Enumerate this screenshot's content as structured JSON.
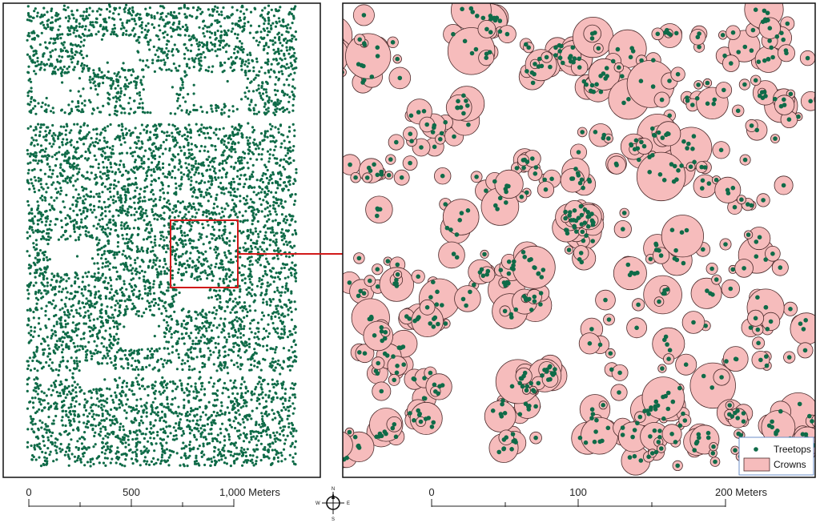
{
  "colors": {
    "treetop": "#0f6b48",
    "crown_fill": "#f6bcbc",
    "crown_stroke": "#4a2a2a",
    "inset_box": "#d11a1a",
    "frame": "#111111"
  },
  "overview_map": {
    "layer": "treetops",
    "scale_bar": {
      "ticks": [
        "0",
        "500",
        "1,000 Meters"
      ]
    }
  },
  "detail_map": {
    "layers": [
      "treetops",
      "crowns"
    ],
    "scale_bar": {
      "ticks": [
        "0",
        "100",
        "200 Meters"
      ]
    },
    "legend": {
      "items": [
        {
          "label": "Treetops",
          "symbol": "dot"
        },
        {
          "label": "Crowns",
          "symbol": "rect"
        }
      ]
    }
  },
  "compass": {
    "N": "N",
    "S": "S",
    "E": "E",
    "W": "W"
  }
}
